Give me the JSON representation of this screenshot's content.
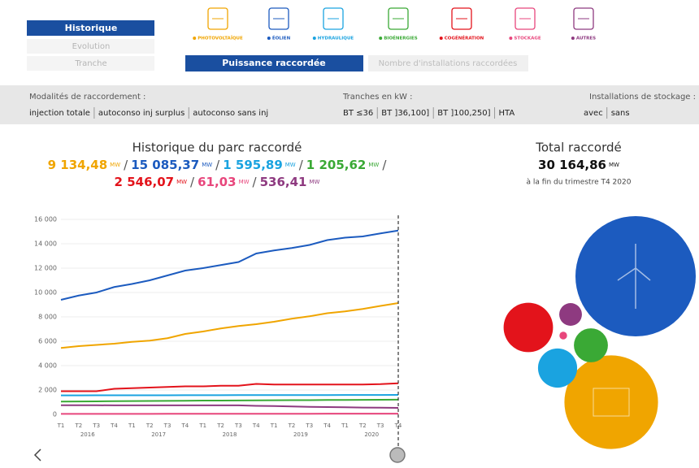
{
  "nav": {
    "items": [
      "Historique",
      "Evolution",
      "Tranche"
    ]
  },
  "metric_toggle": [
    "Puissance raccordée",
    "Nombre d'installations raccordées"
  ],
  "filters": [
    {
      "label": "Modalités de raccordement :",
      "options": [
        "injection totale",
        "autoconso inj surplus",
        "autoconso sans inj"
      ]
    },
    {
      "label": "Tranches en kW :",
      "options": [
        "BT ≤36",
        "BT ]36,100]",
        "BT ]100,250]",
        "HTA"
      ]
    },
    {
      "label": "Installations de stockage :",
      "options": [
        "avec",
        "sans"
      ]
    }
  ],
  "chart": {
    "title": "Historique du parc raccordé",
    "unit": "MW",
    "separator": "/",
    "categories": [
      "T1",
      "T2",
      "T3",
      "T4",
      "T1",
      "T2",
      "T3",
      "T4",
      "T1",
      "T2",
      "T3",
      "T4",
      "T1",
      "T2",
      "T3",
      "T4",
      "T1",
      "T2",
      "T3",
      "T4"
    ],
    "years": [
      "2016",
      "2017",
      "2018",
      "2019",
      "2020"
    ],
    "ylim": [
      0,
      16000
    ],
    "yticks": [
      0,
      {
        "value": 2000,
        "label": "2 000"
      },
      {
        "value": 4000,
        "label": "4 000"
      },
      {
        "value": 6000,
        "label": "6 000"
      },
      {
        "value": 8000,
        "label": "8 000"
      },
      {
        "value": 10000,
        "label": "10 000"
      },
      {
        "value": 12000,
        "label": "12 000"
      },
      {
        "value": 14000,
        "label": "14 000"
      },
      {
        "value": 16000,
        "label": "16 000"
      }
    ],
    "grid": true,
    "series": [
      {
        "name": "PHOTOVOLTAÏQUE",
        "color": "#f0a500",
        "total_label": "9 134,48",
        "values": [
          5450,
          5600,
          5700,
          5800,
          5950,
          6050,
          6250,
          6600,
          6800,
          7050,
          7250,
          7400,
          7600,
          7850,
          8050,
          8300,
          8450,
          8650,
          8900,
          9134.48
        ]
      },
      {
        "name": "ÉOLIEN",
        "color": "#1c5bbf",
        "total_label": "15 085,37",
        "values": [
          9400,
          9750,
          10000,
          10450,
          10700,
          11000,
          11400,
          11800,
          12000,
          12250,
          12500,
          13200,
          13450,
          13650,
          13900,
          14300,
          14500,
          14600,
          14850,
          15085.37
        ]
      },
      {
        "name": "HYDRAULIQUE",
        "color": "#1aa3e0",
        "total_label": "1 595,89",
        "values": [
          1560,
          1560,
          1565,
          1565,
          1570,
          1570,
          1570,
          1575,
          1575,
          1575,
          1580,
          1580,
          1580,
          1585,
          1585,
          1585,
          1590,
          1590,
          1592,
          1595.89
        ]
      },
      {
        "name": "BIOÉNERGIES",
        "color": "#3aa935",
        "total_label": "1 205,62",
        "values": [
          1050,
          1060,
          1070,
          1080,
          1090,
          1100,
          1110,
          1120,
          1130,
          1135,
          1140,
          1150,
          1160,
          1165,
          1170,
          1180,
          1185,
          1190,
          1198,
          1205.62
        ]
      },
      {
        "name": "COGÉNÉRATION",
        "color": "#e3131b",
        "total_label": "2 546,07",
        "values": [
          1900,
          1900,
          1900,
          2100,
          2150,
          2200,
          2250,
          2300,
          2300,
          2350,
          2350,
          2500,
          2450,
          2450,
          2450,
          2450,
          2450,
          2450,
          2480,
          2546.07
        ]
      },
      {
        "name": "STOCKAGE",
        "color": "#e8467c",
        "total_label": "61,03",
        "values": [
          40,
          40,
          42,
          42,
          44,
          44,
          46,
          46,
          48,
          48,
          50,
          50,
          52,
          52,
          54,
          55,
          56,
          58,
          60,
          61.03
        ]
      },
      {
        "name": "AUTRES",
        "color": "#8e3a80",
        "total_label": "536,41",
        "values": [
          750,
          750,
          750,
          740,
          740,
          740,
          740,
          740,
          740,
          740,
          740,
          700,
          680,
          650,
          620,
          600,
          580,
          560,
          550,
          536.41
        ]
      }
    ]
  },
  "total": {
    "title": "Total raccordé",
    "value_label": "30 164,86",
    "value": 30164.86,
    "subtitle": "à la fin du trimestre T4 2020"
  }
}
